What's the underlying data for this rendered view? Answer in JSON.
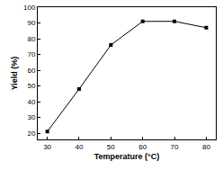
{
  "chart_data": {
    "type": "line",
    "x_label": "Temperature (°C)",
    "y_label": "Yield (%)",
    "x": [
      30,
      40,
      50,
      60,
      70,
      80
    ],
    "values": [
      21,
      48,
      76,
      91,
      91,
      87
    ],
    "color": "#000000",
    "marker": "square",
    "line_style": "solid",
    "xlim": [
      27,
      83
    ],
    "xticks": [
      30,
      40,
      50,
      60,
      70,
      80
    ],
    "ylim": [
      16,
      100
    ],
    "yticks": [
      20,
      30,
      40,
      50,
      60,
      70,
      80,
      90,
      100
    ],
    "grid": false
  }
}
